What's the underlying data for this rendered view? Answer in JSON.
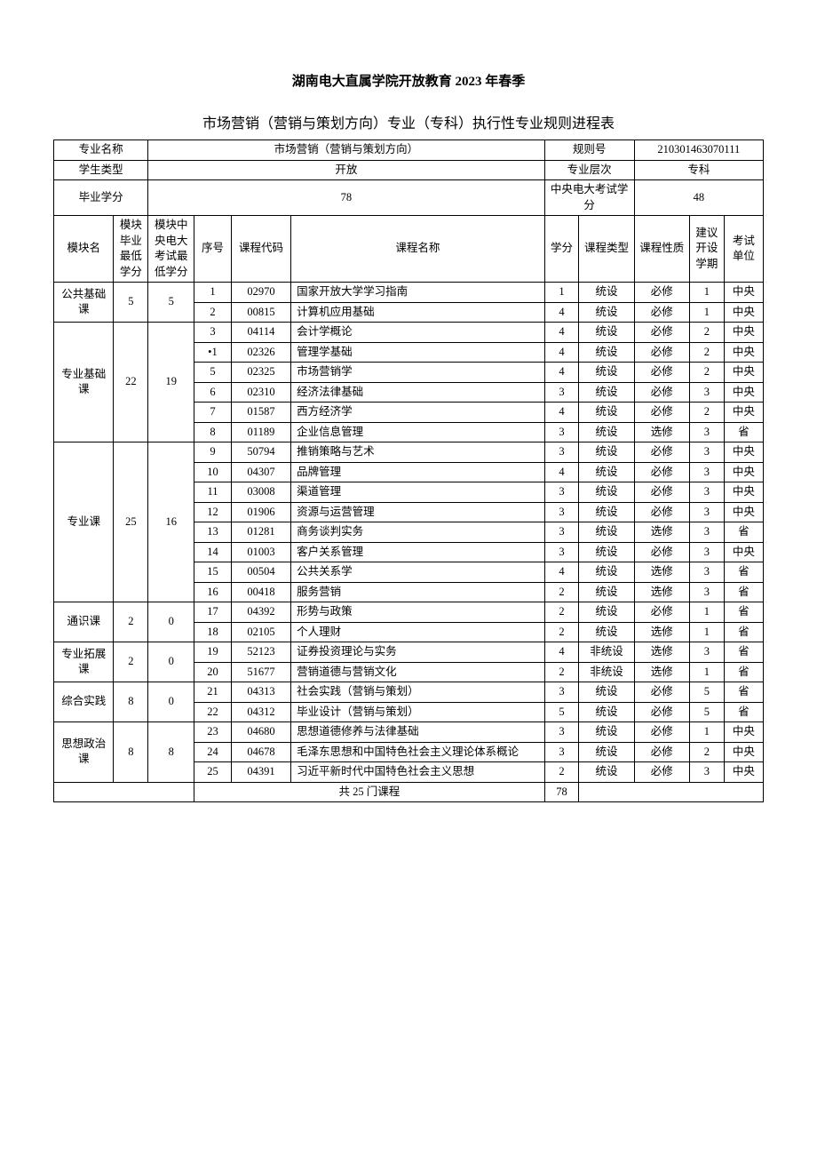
{
  "title_main": "湖南电大直属学院开放教育 2023 年春季",
  "title_sub": "市场营销（营销与策划方向）专业（专科）执行性专业规则进程表",
  "info": {
    "major_label": "专业名称",
    "major_value": "市场营销（营销与策划方向）",
    "rule_label": "规则号",
    "rule_value": "210301463070111",
    "student_type_label": "学生类型",
    "student_type_value": "开放",
    "level_label": "专业层次",
    "level_value": "专科",
    "grad_credit_label": "毕业学分",
    "grad_credit_value": "78",
    "central_exam_label": "中央电大考试学分",
    "central_exam_value": "48"
  },
  "columns": {
    "module": "模块名",
    "min_credit": "模块毕业最低学分",
    "central_min": "模块中央电大考试最低学分",
    "seq": "序号",
    "code": "课程代码",
    "name": "课程名称",
    "credit": "学分",
    "type": "课程类型",
    "nature": "课程性质",
    "term": "建议开设学期",
    "unit": "考试单位"
  },
  "modules": [
    {
      "name": "公共基础课",
      "min_credit": "5",
      "central_min": "5",
      "courses": [
        {
          "seq": "1",
          "code": "02970",
          "name": "国家开放大学学习指南",
          "credit": "1",
          "type": "统设",
          "nature": "必修",
          "term": "1",
          "unit": "中央"
        },
        {
          "seq": "2",
          "code": "00815",
          "name": "计算机应用基础",
          "credit": "4",
          "type": "统设",
          "nature": "必修",
          "term": "1",
          "unit": "中央"
        }
      ]
    },
    {
      "name": "专业基础课",
      "min_credit": "22",
      "central_min": "19",
      "courses": [
        {
          "seq": "3",
          "code": "04114",
          "name": "会计学概论",
          "credit": "4",
          "type": "统设",
          "nature": "必修",
          "term": "2",
          "unit": "中央"
        },
        {
          "seq": "•1",
          "code": "02326",
          "name": "管理学基础",
          "credit": "4",
          "type": "统设",
          "nature": "必修",
          "term": "2",
          "unit": "中央"
        },
        {
          "seq": "5",
          "code": "02325",
          "name": "市场营销学",
          "credit": "4",
          "type": "统设",
          "nature": "必修",
          "term": "2",
          "unit": "中央"
        },
        {
          "seq": "6",
          "code": "02310",
          "name": "经济法律基础",
          "credit": "3",
          "type": "统设",
          "nature": "必修",
          "term": "3",
          "unit": "中央"
        },
        {
          "seq": "7",
          "code": "01587",
          "name": "西方经济学",
          "credit": "4",
          "type": "统设",
          "nature": "必修",
          "term": "2",
          "unit": "中央"
        },
        {
          "seq": "8",
          "code": "01189",
          "name": "企业信息管理",
          "credit": "3",
          "type": "统设",
          "nature": "选修",
          "term": "3",
          "unit": "省"
        }
      ]
    },
    {
      "name": "专业课",
      "min_credit": "25",
      "central_min": "16",
      "courses": [
        {
          "seq": "9",
          "code": "50794",
          "name": "推销策略与艺术",
          "credit": "3",
          "type": "统设",
          "nature": "必修",
          "term": "3",
          "unit": "中央"
        },
        {
          "seq": "10",
          "code": "04307",
          "name": "品牌管理",
          "credit": "4",
          "type": "统设",
          "nature": "必修",
          "term": "3",
          "unit": "中央"
        },
        {
          "seq": "11",
          "code": "03008",
          "name": "渠道管理",
          "credit": "3",
          "type": "统设",
          "nature": "必修",
          "term": "3",
          "unit": "中央"
        },
        {
          "seq": "12",
          "code": "01906",
          "name": "资源与运营管理",
          "credit": "3",
          "type": "统设",
          "nature": "必修",
          "term": "3",
          "unit": "中央"
        },
        {
          "seq": "13",
          "code": "01281",
          "name": "商务谈判实务",
          "credit": "3",
          "type": "统设",
          "nature": "选修",
          "term": "3",
          "unit": "省"
        },
        {
          "seq": "14",
          "code": "01003",
          "name": "客户关系管理",
          "credit": "3",
          "type": "统设",
          "nature": "必修",
          "term": "3",
          "unit": "中央"
        },
        {
          "seq": "15",
          "code": "00504",
          "name": "公共关系学",
          "credit": "4",
          "type": "统设",
          "nature": "选修",
          "term": "3",
          "unit": "省"
        },
        {
          "seq": "16",
          "code": "00418",
          "name": "服务营销",
          "credit": "2",
          "type": "统设",
          "nature": "选修",
          "term": "3",
          "unit": "省"
        }
      ]
    },
    {
      "name": "通识课",
      "min_credit": "2",
      "central_min": "0",
      "courses": [
        {
          "seq": "17",
          "code": "04392",
          "name": "形势与政策",
          "credit": "2",
          "type": "统设",
          "nature": "必修",
          "term": "1",
          "unit": "省"
        },
        {
          "seq": "18",
          "code": "02105",
          "name": "个人理财",
          "credit": "2",
          "type": "统设",
          "nature": "选修",
          "term": "1",
          "unit": "省"
        }
      ]
    },
    {
      "name": "专业拓展课",
      "min_credit": "2",
      "central_min": "0",
      "courses": [
        {
          "seq": "19",
          "code": "52123",
          "name": "证券投资理论与实务",
          "credit": "4",
          "type": "非统设",
          "nature": "选修",
          "term": "3",
          "unit": "省"
        },
        {
          "seq": "20",
          "code": "51677",
          "name": "营销道德与营销文化",
          "credit": "2",
          "type": "非统设",
          "nature": "选修",
          "term": "1",
          "unit": "省"
        }
      ]
    },
    {
      "name": "综合实践",
      "min_credit": "8",
      "central_min": "0",
      "courses": [
        {
          "seq": "21",
          "code": "04313",
          "name": "社会实践（营销与策划）",
          "credit": "3",
          "type": "统设",
          "nature": "必修",
          "term": "5",
          "unit": "省"
        },
        {
          "seq": "22",
          "code": "04312",
          "name": "毕业设计（营销与策划）",
          "credit": "5",
          "type": "统设",
          "nature": "必修",
          "term": "5",
          "unit": "省"
        }
      ]
    },
    {
      "name": "思想政治课",
      "min_credit": "8",
      "central_min": "8",
      "courses": [
        {
          "seq": "23",
          "code": "04680",
          "name": "思想道德修养与法律基础",
          "credit": "3",
          "type": "统设",
          "nature": "必修",
          "term": "1",
          "unit": "中央"
        },
        {
          "seq": "24",
          "code": "04678",
          "name": "毛泽东思想和中国特色社会主义理论体系概论",
          "credit": "3",
          "type": "统设",
          "nature": "必修",
          "term": "2",
          "unit": "中央"
        },
        {
          "seq": "25",
          "code": "04391",
          "name": "习近平新时代中国特色社会主义思想",
          "credit": "2",
          "type": "统设",
          "nature": "必修",
          "term": "3",
          "unit": "中央"
        }
      ]
    }
  ],
  "summary": {
    "text": "共 25 门课程",
    "total_credit": "78"
  },
  "style": {
    "background_color": "#ffffff",
    "border_color": "#000000",
    "text_color": "#000000",
    "title_fontsize": 15,
    "subtitle_fontsize": 16,
    "cell_fontsize": 12.5
  }
}
